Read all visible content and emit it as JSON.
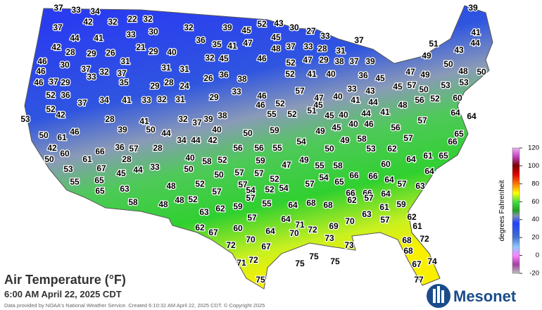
{
  "title": "Air Temperature (°F)",
  "subtitle": "6:00 AM April 22, 2025 CDT",
  "credit": "Data provided by NOAA's National Weather Service. Created 6:10:32 AM April 22, 2025 CDT. © Copyright 2025",
  "logo": "Mesonet",
  "colorbar": {
    "label": "degrees Fahrenheit",
    "ticks": [
      120,
      100,
      80,
      60,
      40,
      20,
      0,
      -20
    ]
  },
  "stations": [
    37,
    33,
    34,
    39,
    42,
    32,
    22,
    32,
    43,
    52,
    30,
    27,
    37,
    30,
    32,
    39,
    45,
    33,
    44,
    41,
    33,
    45,
    41,
    36,
    35,
    41,
    47,
    37,
    44,
    42,
    28,
    29,
    26,
    21,
    29,
    40,
    48,
    37,
    33,
    28,
    51,
    43,
    31,
    45,
    46,
    52,
    47,
    29,
    38,
    31,
    49,
    37,
    39,
    46,
    30,
    37,
    32,
    37,
    31,
    31,
    32,
    26,
    36,
    38,
    52,
    41,
    40,
    36,
    45,
    47,
    49,
    50,
    48,
    50,
    46,
    46,
    37,
    29,
    33,
    35,
    29,
    28,
    24,
    45,
    57,
    53,
    33,
    43,
    52,
    36,
    41,
    33,
    32,
    31,
    29,
    33,
    46,
    57,
    47,
    40,
    41,
    44,
    50,
    53,
    37,
    34,
    46,
    52,
    45,
    48,
    56,
    52,
    60,
    52,
    42,
    55,
    52,
    51,
    45,
    40,
    44,
    41,
    64,
    64,
    53,
    41,
    32,
    37,
    39,
    38,
    50,
    61,
    46,
    28,
    40,
    50,
    59,
    49,
    45,
    40,
    46,
    56,
    57,
    65,
    39,
    50,
    44,
    42,
    60,
    66,
    36,
    57,
    28,
    34,
    44,
    42,
    54,
    50,
    49,
    58,
    53,
    57,
    62,
    66,
    50,
    61,
    28,
    58,
    52,
    56,
    56,
    55,
    61,
    65,
    64,
    40,
    33,
    44,
    45,
    67,
    53,
    50,
    50,
    57,
    57,
    59,
    47,
    49,
    55,
    58,
    66,
    60,
    64,
    55,
    65,
    48,
    52,
    57,
    52,
    57,
    54,
    66,
    64,
    57,
    54,
    52,
    54,
    65,
    63,
    65,
    66,
    66,
    64,
    63,
    57,
    58,
    48,
    48,
    52,
    63,
    62,
    59,
    57,
    55,
    64,
    68,
    68,
    62,
    57,
    61,
    59,
    57,
    64,
    71,
    70,
    63,
    57,
    62,
    62,
    67,
    60,
    64,
    70,
    72,
    69,
    61,
    72,
    73,
    73,
    72,
    70,
    67,
    68,
    68,
    72,
    71,
    75,
    75,
    75,
    67,
    74,
    75,
    77
  ]
}
